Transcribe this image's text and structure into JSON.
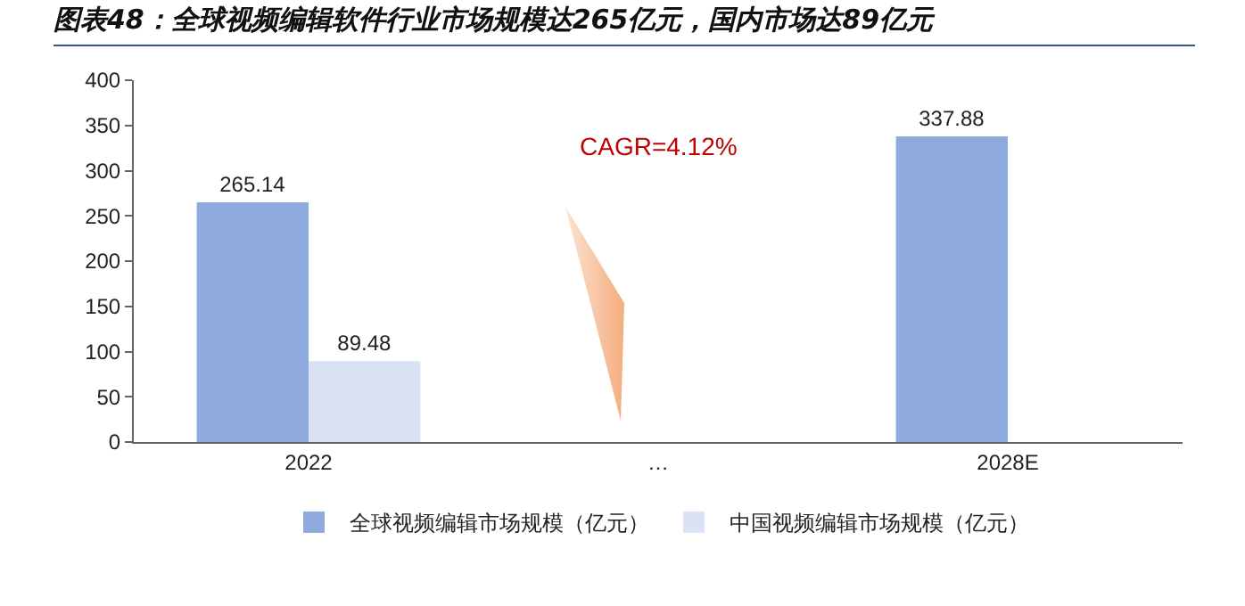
{
  "chart_data": {
    "type": "bar",
    "title": "图表48：全球视频编辑软件行业市场规模达265亿元，国内市场达89亿元",
    "categories": [
      "2022",
      "…",
      "2028E"
    ],
    "series": [
      {
        "name": "全球视频编辑市场规模（亿元）",
        "color": "#8faadc",
        "values": [
          265.14,
          null,
          337.88
        ]
      },
      {
        "name": "中国视频编辑市场规模（亿元）",
        "color": "#dae3f3",
        "values": [
          89.48,
          null,
          null
        ]
      }
    ],
    "ylim": [
      0,
      400
    ],
    "yticks": [
      0,
      50,
      100,
      150,
      200,
      250,
      300,
      350,
      400
    ],
    "grid": false,
    "legend": "bottom",
    "data_labels": true,
    "annotations": [
      "CAGR=4.12%"
    ]
  }
}
